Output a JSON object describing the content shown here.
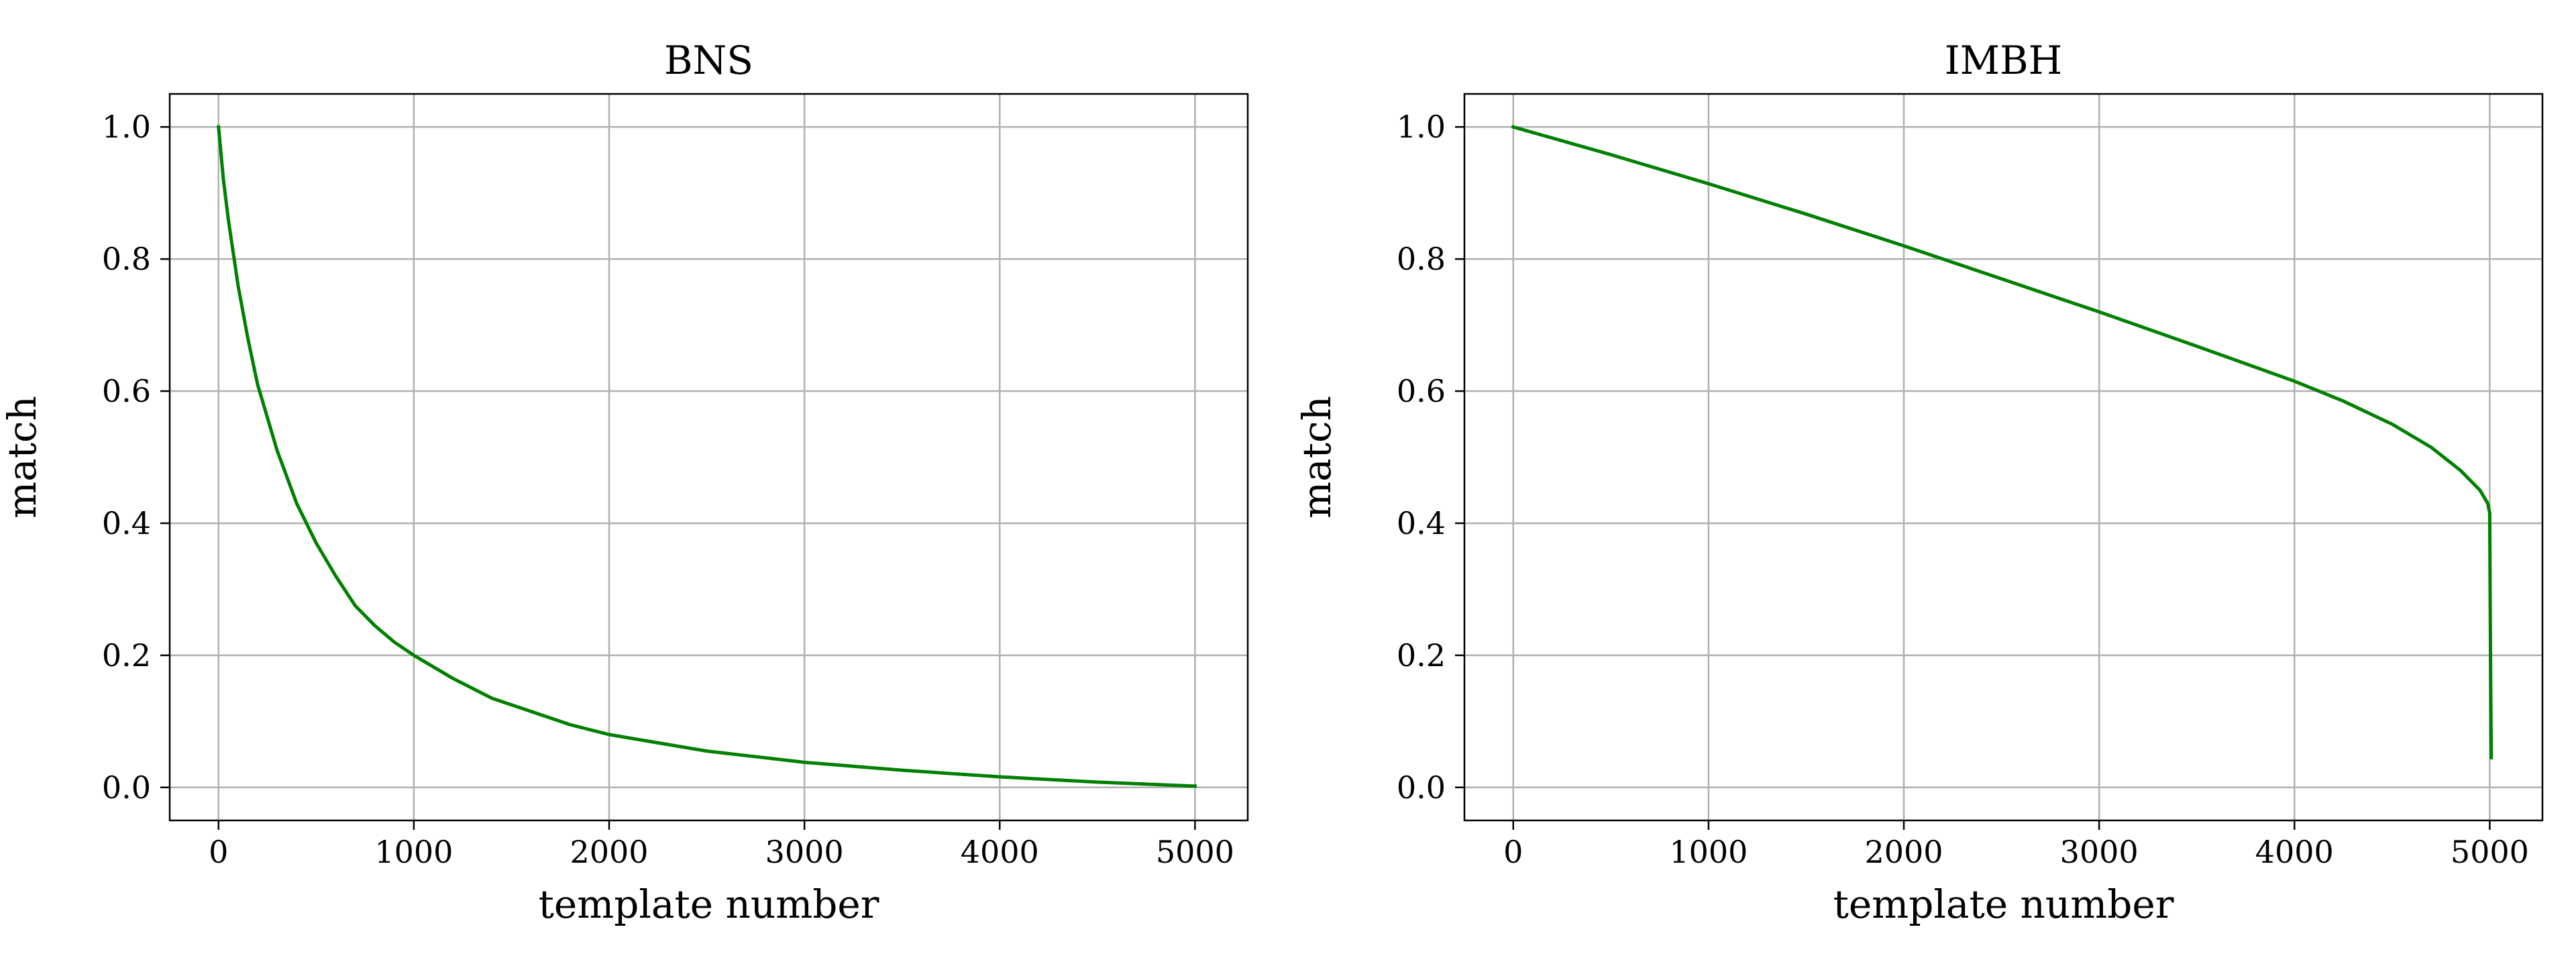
{
  "chart_data": [
    {
      "type": "line",
      "title": "BNS",
      "xlabel": "template number",
      "ylabel": "match",
      "xlim": [
        -250,
        5270
      ],
      "ylim": [
        -0.05,
        1.05
      ],
      "xticks": [
        0,
        1000,
        2000,
        3000,
        4000,
        5000
      ],
      "yticks": [
        0.0,
        0.2,
        0.4,
        0.6,
        0.8,
        1.0
      ],
      "xtick_labels": [
        "0",
        "1000",
        "2000",
        "3000",
        "4000",
        "5000"
      ],
      "ytick_labels": [
        "0.0",
        "0.2",
        "0.4",
        "0.6",
        "0.8",
        "1.0"
      ],
      "grid": true,
      "color": "#008000",
      "series": [
        {
          "x": [
            0,
            25,
            50,
            100,
            150,
            200,
            300,
            400,
            500,
            600,
            700,
            800,
            900,
            1000,
            1200,
            1400,
            1600,
            1800,
            2000,
            2500,
            3000,
            3500,
            4000,
            4500,
            5000
          ],
          "y": [
            1.0,
            0.92,
            0.86,
            0.76,
            0.68,
            0.61,
            0.51,
            0.43,
            0.37,
            0.32,
            0.275,
            0.245,
            0.22,
            0.2,
            0.165,
            0.135,
            0.115,
            0.095,
            0.08,
            0.055,
            0.038,
            0.026,
            0.016,
            0.008,
            0.002
          ]
        }
      ]
    },
    {
      "type": "line",
      "title": "IMBH",
      "xlabel": "template number",
      "ylabel": "match",
      "xlim": [
        -250,
        5270
      ],
      "ylim": [
        -0.05,
        1.05
      ],
      "xticks": [
        0,
        1000,
        2000,
        3000,
        4000,
        5000
      ],
      "yticks": [
        0.0,
        0.2,
        0.4,
        0.6,
        0.8,
        1.0
      ],
      "xtick_labels": [
        "0",
        "1000",
        "2000",
        "3000",
        "4000",
        "5000"
      ],
      "ytick_labels": [
        "0.0",
        "0.2",
        "0.4",
        "0.6",
        "0.8",
        "1.0"
      ],
      "grid": true,
      "color": "#008000",
      "series": [
        {
          "x": [
            0,
            500,
            1000,
            1500,
            2000,
            2500,
            3000,
            3500,
            4000,
            4250,
            4500,
            4700,
            4850,
            4950,
            4990,
            5000,
            5002,
            5005,
            5008
          ],
          "y": [
            1.0,
            0.958,
            0.914,
            0.868,
            0.82,
            0.77,
            0.72,
            0.668,
            0.615,
            0.585,
            0.55,
            0.515,
            0.48,
            0.45,
            0.43,
            0.415,
            0.3,
            0.15,
            0.045
          ]
        }
      ]
    }
  ]
}
